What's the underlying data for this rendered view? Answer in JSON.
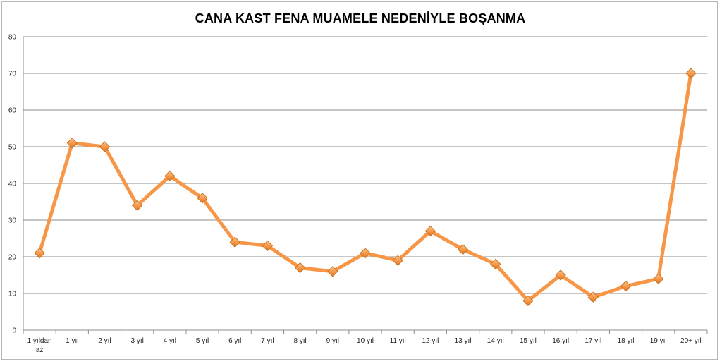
{
  "chart_data": {
    "type": "line",
    "title": "CANA KAST FENA MUAMELE NEDENİYLE BOŞANMA",
    "xlabel": "",
    "ylabel": "",
    "categories": [
      "1 yıldan az",
      "1 yıl",
      "2 yıl",
      "3 yıl",
      "4 yıl",
      "5 yıl",
      "6 yıl",
      "7 yıl",
      "8 yıl",
      "9 yıl",
      "10 yıl",
      "11 yıl",
      "12 yıl",
      "13 yıl",
      "14 yıl",
      "15 yıl",
      "16 yıl",
      "17 yıl",
      "18 yıl",
      "19 yıl",
      "20+ yıl"
    ],
    "category_lines": [
      [
        "1 yıldan",
        "az"
      ],
      [
        "1 yıl"
      ],
      [
        "2 yıl"
      ],
      [
        "3 yıl"
      ],
      [
        "4 yıl"
      ],
      [
        "5 yıl"
      ],
      [
        "6 yıl"
      ],
      [
        "7 yıl"
      ],
      [
        "8 yıl"
      ],
      [
        "9 yıl"
      ],
      [
        "10 yıl"
      ],
      [
        "11 yıl"
      ],
      [
        "12 yıl"
      ],
      [
        "13 yıl"
      ],
      [
        "14 yıl"
      ],
      [
        "15 yıl"
      ],
      [
        "16 yıl"
      ],
      [
        "17 yıl"
      ],
      [
        "18 yıl"
      ],
      [
        "19 yıl"
      ],
      [
        "20+ yıl"
      ]
    ],
    "series": [
      {
        "values": [
          21,
          51,
          50,
          34,
          42,
          36,
          24,
          23,
          17,
          16,
          21,
          19,
          27,
          22,
          18,
          8,
          15,
          9,
          12,
          14,
          70
        ]
      }
    ],
    "ylim": [
      0,
      80
    ],
    "yticks": [
      0,
      10,
      20,
      30,
      40,
      50,
      60,
      70,
      80
    ],
    "grid": true,
    "legend": "none",
    "colors": {
      "line": "#f79646",
      "marker_fill": "#f79646",
      "marker_stroke": "#c8741f",
      "grid": "#8c8c8c",
      "axis": "#8c8c8c"
    }
  }
}
